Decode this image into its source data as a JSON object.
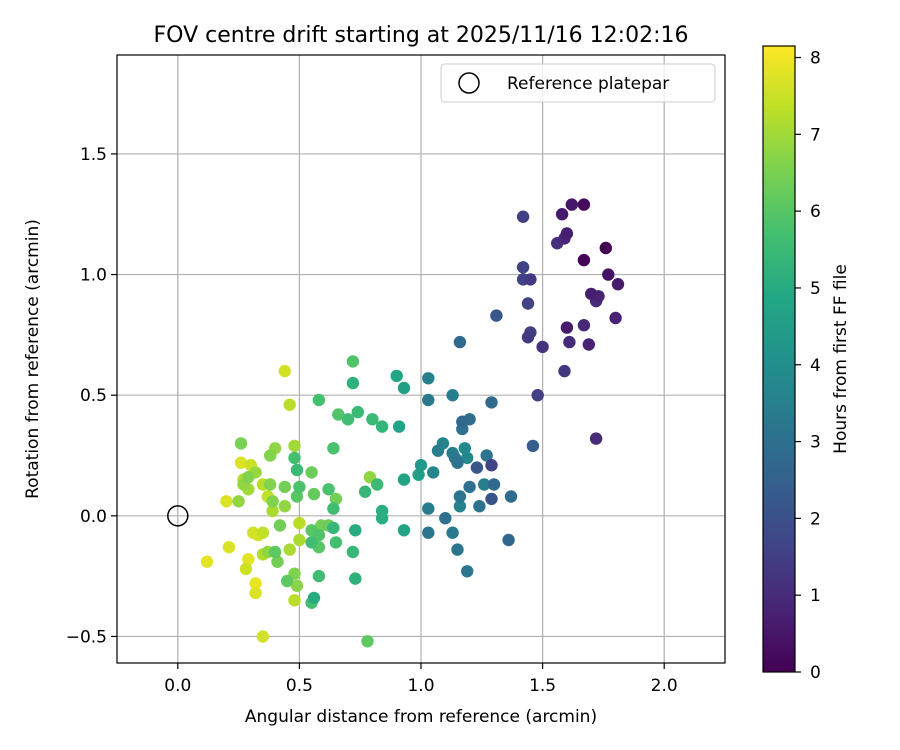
{
  "chart_data": {
    "type": "scatter",
    "title": "FOV centre drift starting at 2025/11/16 12:02:16",
    "xlabel": "Angular distance from reference (arcmin)",
    "ylabel": "Rotation from reference (arcmin)",
    "xlim": [
      -0.25,
      2.25
    ],
    "ylim": [
      -0.61,
      1.91
    ],
    "xticks": [
      0.0,
      0.5,
      1.0,
      1.5,
      2.0
    ],
    "xtick_labels": [
      "0.0",
      "0.5",
      "1.0",
      "1.5",
      "2.0"
    ],
    "yticks": [
      -0.5,
      0.0,
      0.5,
      1.0,
      1.5
    ],
    "ytick_labels": [
      "−0.5",
      "0.0",
      "0.5",
      "1.0",
      "1.5"
    ],
    "grid": true,
    "legend": {
      "position": "top-right",
      "entries": [
        "Reference platepar"
      ]
    },
    "reference_point": {
      "label": "Reference platepar",
      "x": 0.0,
      "y": 0.0
    },
    "colorbar": {
      "label": "Hours from first FF file",
      "colormap": "viridis",
      "range": [
        0,
        8.15
      ],
      "ticks": [
        0,
        1,
        2,
        3,
        4,
        5,
        6,
        7,
        8
      ],
      "tick_labels": [
        "0",
        "1",
        "2",
        "3",
        "4",
        "5",
        "6",
        "7",
        "8"
      ]
    },
    "series": [
      {
        "name": "FOV centre positions",
        "points": [
          [
            1.67,
            1.29,
            0.2
          ],
          [
            1.62,
            1.29,
            0.5
          ],
          [
            1.58,
            1.25,
            0.6
          ],
          [
            1.6,
            1.17,
            0.7
          ],
          [
            1.59,
            1.15,
            0.9
          ],
          [
            1.56,
            1.13,
            1.1
          ],
          [
            1.42,
            1.24,
            1.5
          ],
          [
            1.76,
            1.11,
            0.0
          ],
          [
            1.67,
            1.06,
            0.1
          ],
          [
            1.77,
            1.0,
            0.4
          ],
          [
            1.81,
            0.96,
            0.6
          ],
          [
            1.7,
            0.92,
            0.7
          ],
          [
            1.73,
            0.91,
            0.8
          ],
          [
            1.72,
            0.89,
            1.0
          ],
          [
            1.42,
            1.03,
            1.6
          ],
          [
            1.42,
            0.98,
            1.6
          ],
          [
            1.45,
            0.98,
            1.4
          ],
          [
            1.44,
            0.88,
            1.6
          ],
          [
            1.45,
            0.76,
            1.5
          ],
          [
            1.44,
            0.74,
            1.4
          ],
          [
            1.8,
            0.82,
            0.8
          ],
          [
            1.6,
            0.78,
            0.6
          ],
          [
            1.67,
            0.79,
            0.9
          ],
          [
            1.69,
            0.71,
            0.8
          ],
          [
            1.61,
            0.72,
            1.0
          ],
          [
            1.5,
            0.7,
            1.2
          ],
          [
            1.59,
            0.6,
            1.3
          ],
          [
            1.48,
            0.5,
            1.5
          ],
          [
            1.72,
            0.32,
            1.0
          ],
          [
            1.31,
            0.83,
            2.2
          ],
          [
            1.46,
            0.29,
            2.4
          ],
          [
            1.16,
            0.72,
            2.8
          ],
          [
            1.29,
            0.47,
            2.8
          ],
          [
            1.17,
            0.39,
            2.7
          ],
          [
            1.2,
            0.4,
            2.9
          ],
          [
            1.17,
            0.36,
            3.0
          ],
          [
            1.14,
            0.24,
            3.3
          ],
          [
            1.13,
            0.26,
            3.5
          ],
          [
            1.19,
            0.24,
            3.8
          ],
          [
            1.15,
            0.22,
            3.1
          ],
          [
            1.29,
            0.21,
            1.6
          ],
          [
            1.23,
            0.2,
            2.2
          ],
          [
            1.27,
            0.25,
            3.2
          ],
          [
            1.26,
            0.13,
            3.5
          ],
          [
            1.3,
            0.13,
            2.8
          ],
          [
            1.2,
            0.12,
            3.0
          ],
          [
            1.29,
            0.07,
            2.1
          ],
          [
            1.37,
            0.08,
            2.9
          ],
          [
            1.16,
            0.08,
            3.2
          ],
          [
            1.16,
            0.04,
            3.6
          ],
          [
            1.24,
            0.04,
            3.1
          ],
          [
            1.1,
            -0.01,
            3.0
          ],
          [
            1.13,
            -0.07,
            3.3
          ],
          [
            1.15,
            -0.14,
            3.2
          ],
          [
            1.19,
            -0.23,
            3.2
          ],
          [
            1.36,
            -0.1,
            2.7
          ],
          [
            1.03,
            0.57,
            3.5
          ],
          [
            1.03,
            0.48,
            3.3
          ],
          [
            1.13,
            0.5,
            3.5
          ],
          [
            1.07,
            0.27,
            3.5
          ],
          [
            1.09,
            0.3,
            3.6
          ],
          [
            1.18,
            0.28,
            3.8
          ],
          [
            1.05,
            0.18,
            3.7
          ],
          [
            1.03,
            0.03,
            3.4
          ],
          [
            1.03,
            -0.07,
            3.2
          ],
          [
            1.0,
            0.21,
            4.4
          ],
          [
            0.99,
            0.17,
            4.6
          ],
          [
            0.9,
            0.58,
            4.8
          ],
          [
            0.93,
            0.53,
            4.6
          ],
          [
            0.91,
            0.37,
            4.7
          ],
          [
            0.93,
            0.15,
            4.7
          ],
          [
            0.93,
            -0.06,
            4.8
          ],
          [
            0.84,
            0.37,
            5.3
          ],
          [
            0.8,
            0.4,
            5.5
          ],
          [
            0.77,
            0.1,
            5.4
          ],
          [
            0.82,
            0.13,
            5.5
          ],
          [
            0.84,
            0.02,
            5.1
          ],
          [
            0.84,
            -0.01,
            5.1
          ],
          [
            0.72,
            0.64,
            5.9
          ],
          [
            0.72,
            0.55,
            5.2
          ],
          [
            0.74,
            0.43,
            5.5
          ],
          [
            0.7,
            0.4,
            5.6
          ],
          [
            0.66,
            0.42,
            5.9
          ],
          [
            0.58,
            0.48,
            5.7
          ],
          [
            0.64,
            0.28,
            5.8
          ],
          [
            0.55,
            0.18,
            6.3
          ],
          [
            0.48,
            0.24,
            5.7
          ],
          [
            0.49,
            0.19,
            5.5
          ],
          [
            0.5,
            0.12,
            5.8
          ],
          [
            0.49,
            0.08,
            6.0
          ],
          [
            0.56,
            0.09,
            6.2
          ],
          [
            0.62,
            0.11,
            5.8
          ],
          [
            0.65,
            0.07,
            6.4
          ],
          [
            0.64,
            0.03,
            5.6
          ],
          [
            0.62,
            -0.04,
            6.3
          ],
          [
            0.64,
            -0.05,
            5.4
          ],
          [
            0.59,
            -0.04,
            6.4
          ],
          [
            0.58,
            -0.08,
            5.9
          ],
          [
            0.55,
            -0.06,
            6.0
          ],
          [
            0.55,
            -0.11,
            5.6
          ],
          [
            0.58,
            -0.13,
            6.0
          ],
          [
            0.65,
            -0.11,
            5.7
          ],
          [
            0.72,
            -0.15,
            5.4
          ],
          [
            0.73,
            -0.06,
            5.0
          ],
          [
            0.58,
            -0.25,
            5.6
          ],
          [
            0.73,
            -0.26,
            5.2
          ],
          [
            0.56,
            -0.34,
            5.0
          ],
          [
            0.55,
            -0.36,
            5.7
          ],
          [
            0.78,
            -0.52,
            6.1
          ],
          [
            0.79,
            0.16,
            6.8
          ],
          [
            0.44,
            0.12,
            6.4
          ],
          [
            0.44,
            0.04,
            6.8
          ],
          [
            0.42,
            -0.04,
            6.4
          ],
          [
            0.4,
            -0.15,
            6.1
          ],
          [
            0.41,
            -0.19,
            6.4
          ],
          [
            0.45,
            -0.27,
            6.1
          ],
          [
            0.48,
            -0.24,
            6.6
          ],
          [
            0.49,
            -0.29,
            6.7
          ],
          [
            0.48,
            -0.35,
            7.3
          ],
          [
            0.44,
            0.6,
            7.6
          ],
          [
            0.46,
            0.46,
            7.3
          ],
          [
            0.48,
            0.29,
            7.0
          ],
          [
            0.4,
            0.28,
            6.8
          ],
          [
            0.38,
            0.25,
            6.6
          ],
          [
            0.26,
            0.3,
            6.5
          ],
          [
            0.3,
            0.21,
            7.5
          ],
          [
            0.29,
            0.16,
            6.6
          ],
          [
            0.27,
            0.13,
            6.8
          ],
          [
            0.25,
            0.06,
            6.8
          ],
          [
            0.32,
            0.18,
            6.9
          ],
          [
            0.35,
            0.13,
            7.3
          ],
          [
            0.38,
            0.13,
            6.6
          ],
          [
            0.37,
            0.08,
            7.4
          ],
          [
            0.39,
            0.06,
            6.6
          ],
          [
            0.39,
            0.02,
            7.1
          ],
          [
            0.26,
            0.22,
            7.7
          ],
          [
            0.2,
            0.06,
            7.7
          ],
          [
            0.27,
            0.15,
            7.2
          ],
          [
            0.29,
            0.11,
            7.0
          ],
          [
            0.5,
            -0.03,
            7.3
          ],
          [
            0.5,
            -0.1,
            7.1
          ],
          [
            0.46,
            -0.14,
            7.1
          ],
          [
            0.35,
            -0.07,
            7.4
          ],
          [
            0.31,
            -0.07,
            7.6
          ],
          [
            0.33,
            -0.08,
            7.6
          ],
          [
            0.37,
            -0.15,
            6.8
          ],
          [
            0.35,
            -0.16,
            7.2
          ],
          [
            0.21,
            -0.13,
            7.7
          ],
          [
            0.12,
            -0.19,
            7.8
          ],
          [
            0.29,
            -0.18,
            7.8
          ],
          [
            0.28,
            -0.22,
            7.5
          ],
          [
            0.32,
            -0.28,
            7.9
          ],
          [
            0.32,
            -0.32,
            7.7
          ],
          [
            0.35,
            -0.5,
            7.6
          ]
        ]
      }
    ]
  }
}
